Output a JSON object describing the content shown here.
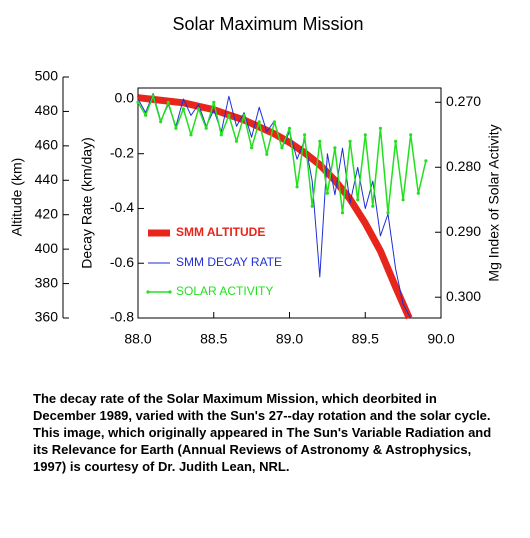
{
  "chart_data": {
    "type": "line",
    "title": "Solar Maximum Mission",
    "caption": "The decay rate of the Solar Maximum Mission, which deorbited in December 1989, varied with the Sun's 27--day rotation and the solar cycle. This image, which originally appeared in The Sun's Variable Radiation and its Relevance for Earth (Annual Reviews of Astronomy & Astrophysics, 1997) is courtesy of Dr. Judith Lean, NRL.",
    "y3_label": "Altitude (km)",
    "y_label": "Decay Rate (km/day)",
    "y2_label": "Mg Index of Solar Activity",
    "xlim": [
      88,
      90
    ],
    "xticks": [
      {
        "value": 88,
        "label": "88.0"
      },
      {
        "value": 88.5,
        "label": "88.5"
      },
      {
        "value": 89,
        "label": "89.0"
      },
      {
        "value": 89.5,
        "label": "89.5"
      },
      {
        "value": 90,
        "label": "90.0"
      }
    ],
    "ylim": [
      -0.8,
      0.04
    ],
    "yticks": [
      {
        "value": 0,
        "label": "0.0"
      },
      -0.2,
      -0.4,
      -0.6,
      -0.8
    ],
    "y2lim": [
      0.3032,
      0.2678
    ],
    "y2ticks": [
      {
        "value": 0.27,
        "label": "0.270"
      },
      {
        "value": 0.28,
        "label": "0.280"
      },
      {
        "value": 0.29,
        "label": "0.290"
      },
      {
        "value": 0.3,
        "label": "0.300"
      }
    ],
    "y3lim": [
      360,
      500
    ],
    "y3ticks": [
      360,
      380,
      400,
      420,
      440,
      460,
      480,
      500
    ],
    "series": [
      {
        "name": "SMM ALTITUDE",
        "color": "#e8251a",
        "axis": "y3",
        "width": 7,
        "x": [
          88.0,
          88.1,
          88.2,
          88.3,
          88.4,
          88.5,
          88.6,
          88.7,
          88.8,
          88.9,
          89.0,
          89.1,
          89.2,
          89.3,
          89.4,
          89.5,
          89.6,
          89.7,
          89.79
        ],
        "values": [
          488,
          487,
          486,
          485,
          483,
          481,
          478,
          475,
          471,
          467,
          462,
          456,
          449,
          440,
          429,
          415,
          399,
          378,
          360
        ]
      },
      {
        "name": "SMM DECAY RATE",
        "color": "#1f2fd6",
        "axis": "y",
        "width": 1,
        "x": [
          88.0,
          88.05,
          88.1,
          88.15,
          88.2,
          88.25,
          88.3,
          88.35,
          88.4,
          88.45,
          88.5,
          88.55,
          88.6,
          88.65,
          88.7,
          88.75,
          88.8,
          88.85,
          88.9,
          88.95,
          89.0,
          89.05,
          89.1,
          89.15,
          89.2,
          89.25,
          89.3,
          89.35,
          89.4,
          89.45,
          89.5,
          89.55,
          89.6,
          89.65,
          89.7,
          89.75,
          89.8
        ],
        "values": [
          0.0,
          -0.05,
          0.02,
          -0.08,
          -0.02,
          -0.1,
          0.0,
          -0.06,
          -0.02,
          -0.1,
          -0.04,
          -0.12,
          0.01,
          -0.1,
          -0.05,
          -0.14,
          -0.03,
          -0.12,
          -0.08,
          -0.18,
          -0.12,
          -0.22,
          -0.15,
          -0.3,
          -0.65,
          -0.2,
          -0.35,
          -0.18,
          -0.38,
          -0.25,
          -0.4,
          -0.3,
          -0.5,
          -0.42,
          -0.62,
          -0.75,
          -0.8
        ]
      },
      {
        "name": "SOLAR ACTIVITY",
        "color": "#22e01e",
        "axis": "y2",
        "width": 1.5,
        "markers": true,
        "x": [
          88.0,
          88.05,
          88.1,
          88.15,
          88.2,
          88.25,
          88.3,
          88.35,
          88.4,
          88.45,
          88.5,
          88.55,
          88.6,
          88.65,
          88.7,
          88.75,
          88.8,
          88.85,
          88.9,
          88.95,
          89.0,
          89.05,
          89.1,
          89.15,
          89.2,
          89.25,
          89.3,
          89.35,
          89.4,
          89.45,
          89.5,
          89.55,
          89.6,
          89.65,
          89.7,
          89.75,
          89.8,
          89.85,
          89.9
        ],
        "values": [
          0.27,
          0.272,
          0.269,
          0.273,
          0.27,
          0.274,
          0.271,
          0.275,
          0.271,
          0.274,
          0.27,
          0.275,
          0.272,
          0.276,
          0.272,
          0.277,
          0.273,
          0.278,
          0.273,
          0.277,
          0.274,
          0.283,
          0.275,
          0.286,
          0.276,
          0.284,
          0.277,
          0.287,
          0.276,
          0.285,
          0.275,
          0.286,
          0.274,
          0.287,
          0.276,
          0.285,
          0.275,
          0.284,
          0.279
        ]
      }
    ]
  }
}
